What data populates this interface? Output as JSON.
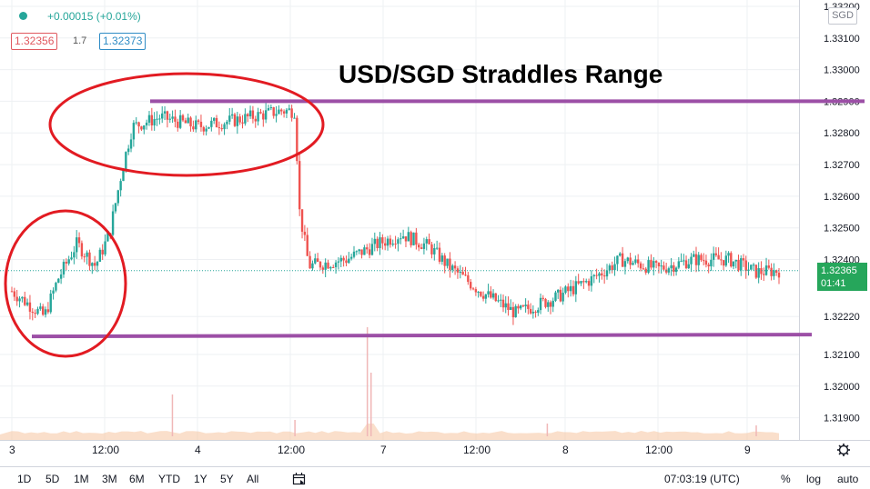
{
  "legend": {
    "change": "+0.00015 (+0.01%)",
    "bid": "1.32356",
    "spread": "1.7",
    "ask": "1.32373"
  },
  "currency": "SGD",
  "last_price": "1.32365",
  "countdown": "01:41",
  "time_axis": [
    "3",
    "12:00",
    "4",
    "12:00",
    "7",
    "12:00",
    "8",
    "12:00",
    "9"
  ],
  "range_buttons": [
    "1D",
    "5D",
    "1M",
    "3M",
    "6M",
    "YTD",
    "1Y",
    "5Y",
    "All"
  ],
  "clock": "07:03:19 (UTC)",
  "bottom_options": [
    "%",
    "log",
    "auto"
  ],
  "colors": {
    "up": "#26a69a",
    "down": "#ef5350",
    "annotation_line": "#9c4fa6",
    "annotation_circle": "#e21b22",
    "price_tag": "#26a65b"
  },
  "chart_data": {
    "type": "candlestick",
    "title": "USD/SGD Straddles Range",
    "ylabel": "SGD",
    "ylim": [
      1.3183,
      1.3322
    ],
    "y_ticks": [
      1.319,
      1.32,
      1.321,
      1.3222,
      1.324,
      1.325,
      1.326,
      1.327,
      1.328,
      1.329,
      1.33,
      1.331,
      1.332
    ],
    "y_tick_labels": [
      "1.31900",
      "1.32000",
      "1.32100",
      "1.32220",
      "1.32400",
      "1.32500",
      "1.32600",
      "1.32700",
      "1.32800",
      "1.32900",
      "1.33000",
      "1.33100",
      "1.33200"
    ],
    "x_categories": [
      "3",
      "12:00",
      "4",
      "12:00",
      "7",
      "12:00",
      "8",
      "12:00",
      "9"
    ],
    "price_path": [
      {
        "x": 0.0,
        "y": 1.323
      },
      {
        "x": 0.35,
        "y": 1.3222
      },
      {
        "x": 0.5,
        "y": 1.3234
      },
      {
        "x": 0.7,
        "y": 1.3245
      },
      {
        "x": 0.9,
        "y": 1.3238
      },
      {
        "x": 1.05,
        "y": 1.3248
      },
      {
        "x": 1.2,
        "y": 1.327
      },
      {
        "x": 1.3,
        "y": 1.3282
      },
      {
        "x": 1.6,
        "y": 1.3285
      },
      {
        "x": 2.0,
        "y": 1.3282
      },
      {
        "x": 2.4,
        "y": 1.3284
      },
      {
        "x": 2.9,
        "y": 1.3287
      },
      {
        "x": 3.05,
        "y": 1.3287
      },
      {
        "x": 3.1,
        "y": 1.3255
      },
      {
        "x": 3.2,
        "y": 1.3238
      },
      {
        "x": 3.6,
        "y": 1.324
      },
      {
        "x": 3.95,
        "y": 1.3245
      },
      {
        "x": 4.2,
        "y": 1.3248
      },
      {
        "x": 4.5,
        "y": 1.3244
      },
      {
        "x": 4.7,
        "y": 1.3238
      },
      {
        "x": 5.05,
        "y": 1.323
      },
      {
        "x": 5.45,
        "y": 1.3223
      },
      {
        "x": 5.9,
        "y": 1.3228
      },
      {
        "x": 6.3,
        "y": 1.3234
      },
      {
        "x": 6.6,
        "y": 1.324
      },
      {
        "x": 7.0,
        "y": 1.3237
      },
      {
        "x": 7.4,
        "y": 1.324
      },
      {
        "x": 7.8,
        "y": 1.324
      },
      {
        "x": 8.1,
        "y": 1.3236
      },
      {
        "x": 8.35,
        "y": 1.32365
      }
    ],
    "volume_spike": {
      "x": 3.85,
      "value": "large"
    },
    "annotations": [
      {
        "type": "horizontal_line",
        "y": 1.329
      },
      {
        "type": "horizontal_line",
        "y": 1.3216
      },
      {
        "type": "ellipse",
        "region": "upper-left"
      },
      {
        "type": "circle",
        "region": "lower-left"
      }
    ],
    "grid": true,
    "price_line": 1.32365
  }
}
